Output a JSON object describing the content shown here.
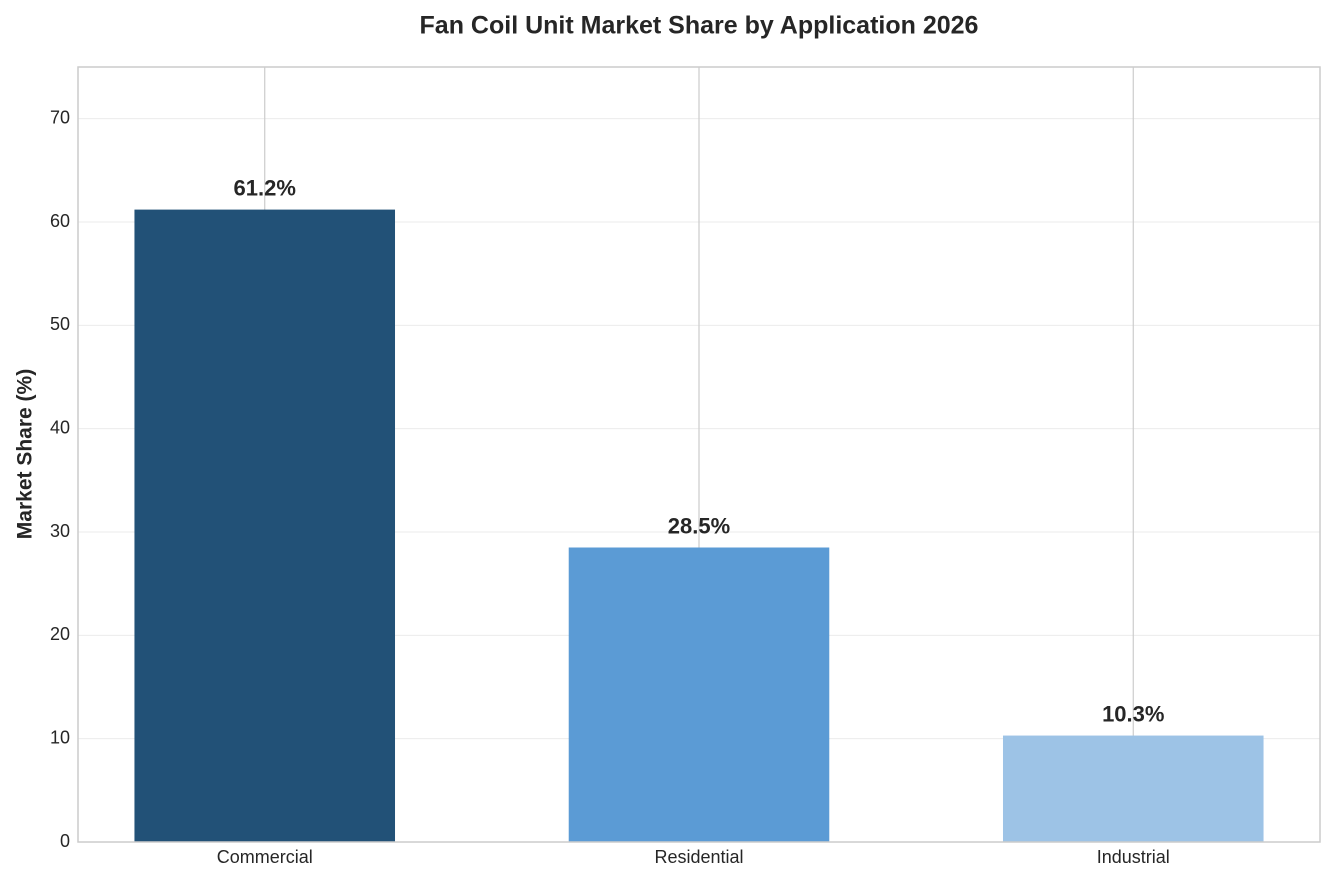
{
  "chart_data": {
    "type": "bar",
    "title": "Fan Coil Unit Market Share by Application 2026",
    "y_label": "Market Share (%)",
    "categories": [
      "Commercial",
      "Residential",
      "Industrial"
    ],
    "values": [
      61.2,
      28.5,
      10.3
    ],
    "value_labels": [
      "61.2%",
      "28.5%",
      "10.3%"
    ],
    "colors": [
      "#225177",
      "#5b9bd5",
      "#9dc3e6"
    ],
    "ylim": [
      0,
      75
    ],
    "yticks": [
      0,
      10,
      20,
      30,
      40,
      50,
      60,
      70
    ],
    "grid": true
  }
}
